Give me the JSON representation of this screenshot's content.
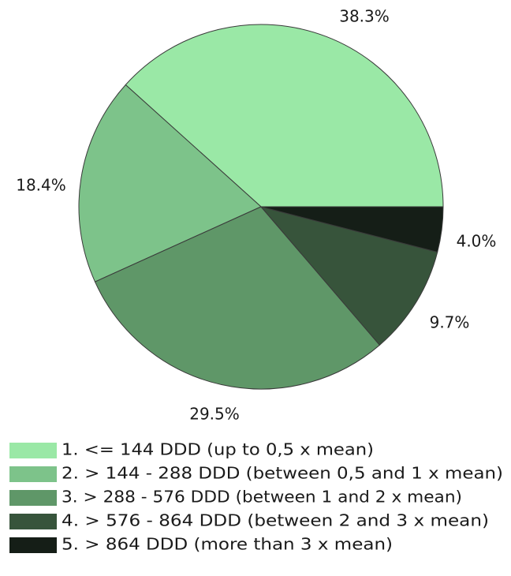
{
  "chart_data": {
    "type": "pie",
    "title": "",
    "slices": [
      {
        "label": "1. <= 144 DDD (up to 0,5 x mean)",
        "value": 38.3,
        "display": "38.3%",
        "color": "#9ae8a6"
      },
      {
        "label": "2. > 144 - 288 DDD (between 0,5 and 1 x mean)",
        "value": 18.4,
        "display": "18.4%",
        "color": "#7dc38a"
      },
      {
        "label": "3. > 288 - 576 DDD (between 1 and 2 x mean)",
        "value": 29.5,
        "display": "29.5%",
        "color": "#5f9768"
      },
      {
        "label": "4. > 576 - 864 DDD (between 2 and 3 x mean)",
        "value": 9.7,
        "display": "9.7%",
        "color": "#37543b"
      },
      {
        "label": "5. > 864 DDD (more than 3 x mean)",
        "value": 4.0,
        "display": "4.0%",
        "color": "#151e17"
      }
    ],
    "start_angle_deg": 0,
    "direction": "counterclockwise",
    "legend_position": "bottom"
  }
}
